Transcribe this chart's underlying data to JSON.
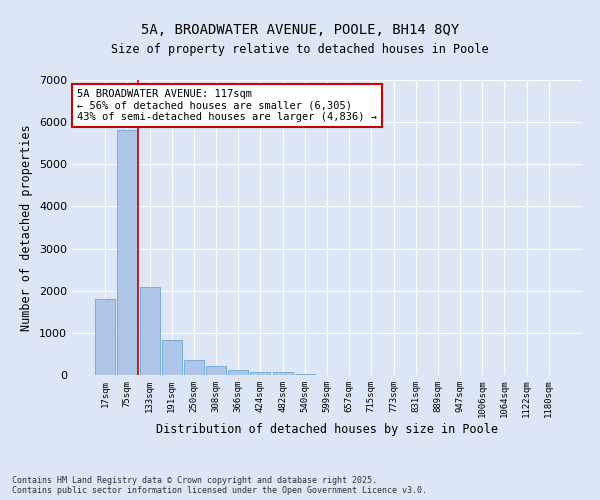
{
  "title": "5A, BROADWATER AVENUE, POOLE, BH14 8QY",
  "subtitle": "Size of property relative to detached houses in Poole",
  "xlabel": "Distribution of detached houses by size in Poole",
  "ylabel": "Number of detached properties",
  "bar_color": "#aec6e8",
  "bar_edge_color": "#5b9bd5",
  "bg_color": "#dce6f5",
  "grid_color": "#ffffff",
  "vline_color": "#cc0000",
  "vline_x_index": 2,
  "annotation_text": "5A BROADWATER AVENUE: 117sqm\n← 56% of detached houses are smaller (6,305)\n43% of semi-detached houses are larger (4,836) →",
  "annotation_box_color": "#ffffff",
  "annotation_border_color": "#cc0000",
  "categories": [
    "17sqm",
    "75sqm",
    "133sqm",
    "191sqm",
    "250sqm",
    "308sqm",
    "366sqm",
    "424sqm",
    "482sqm",
    "540sqm",
    "599sqm",
    "657sqm",
    "715sqm",
    "773sqm",
    "831sqm",
    "889sqm",
    "947sqm",
    "1006sqm",
    "1064sqm",
    "1122sqm",
    "1180sqm"
  ],
  "values": [
    1800,
    5820,
    2080,
    820,
    360,
    220,
    120,
    80,
    80,
    30,
    0,
    0,
    0,
    0,
    0,
    0,
    0,
    0,
    0,
    0,
    0
  ],
  "ylim": [
    0,
    7000
  ],
  "yticks": [
    0,
    1000,
    2000,
    3000,
    4000,
    5000,
    6000,
    7000
  ],
  "footer_line1": "Contains HM Land Registry data © Crown copyright and database right 2025.",
  "footer_line2": "Contains public sector information licensed under the Open Government Licence v3.0.",
  "figsize": [
    6.0,
    5.0
  ],
  "dpi": 100
}
